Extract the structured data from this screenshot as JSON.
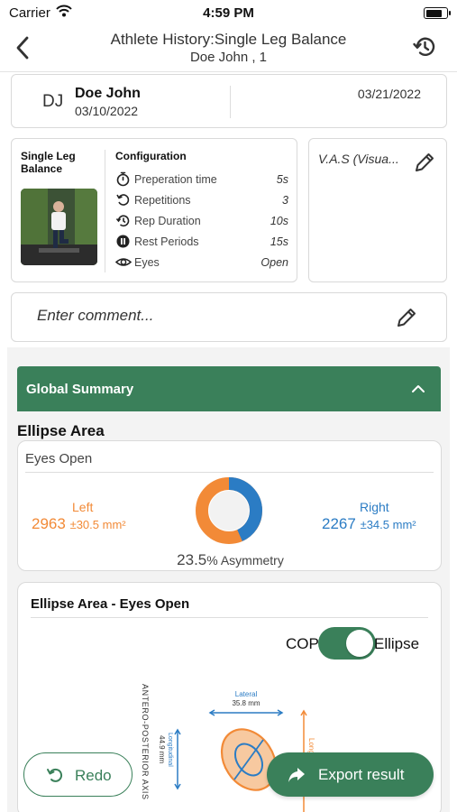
{
  "status_bar": {
    "carrier": "Carrier",
    "time": "4:59 PM",
    "icons": [
      "wifi-icon",
      "battery-icon"
    ]
  },
  "nav": {
    "title": "Athlete History:Single Leg Balance",
    "subtitle": "Doe John , 1",
    "icons": [
      "chevron-left-icon",
      "history-icon"
    ]
  },
  "athlete": {
    "initials": "DJ",
    "name": "Doe John",
    "dob": "03/10/2022",
    "session_date": "03/21/2022"
  },
  "test": {
    "name": "Single Leg Balance",
    "configuration_title": "Configuration",
    "config": [
      {
        "icon": "stopwatch-icon",
        "label": "Preperation time",
        "value": "5s"
      },
      {
        "icon": "repeat-icon",
        "label": "Repetitions",
        "value": "3"
      },
      {
        "icon": "history-icon",
        "label": "Rep Duration",
        "value": "10s"
      },
      {
        "icon": "pause-icon",
        "label": "Rest Periods",
        "value": "15s"
      },
      {
        "icon": "eye-icon",
        "label": "Eyes",
        "value": "Open"
      }
    ]
  },
  "vas": {
    "label": "V.A.S (Visua..."
  },
  "comment": {
    "placeholder": "Enter comment..."
  },
  "global_summary": {
    "title": "Global Summary",
    "expanded": true
  },
  "ellipse_area": {
    "section_title": "Ellipse Area",
    "card_title": "Eyes Open",
    "left_label": "Left",
    "left_value": "2963",
    "left_sd": "±30.5 mm²",
    "right_label": "Right",
    "right_value": "2267",
    "right_sd": "±34.5 mm²",
    "asymmetry_value": "23.5",
    "asymmetry_suffix": "% Asymmetry",
    "colors": {
      "left": "#f28a37",
      "right": "#2b7cc4"
    }
  },
  "ellipse_graph": {
    "title": "Ellipse Area - Eyes Open",
    "toggle_left": "COP",
    "toggle_right": "Ellipse",
    "toggle_on": true,
    "lateral_label": "Lateral",
    "lateral_value": "35.8 mm",
    "longitudinal_label": "Longitudinal",
    "longitudinal_value": "44.9 mm",
    "axis_label": "ANTERO-POSTERIOR AXIS",
    "right_partial_label": "Long"
  },
  "actions": {
    "redo": "Redo",
    "export": "Export result"
  },
  "theme": {
    "primary": "#3a805a"
  }
}
